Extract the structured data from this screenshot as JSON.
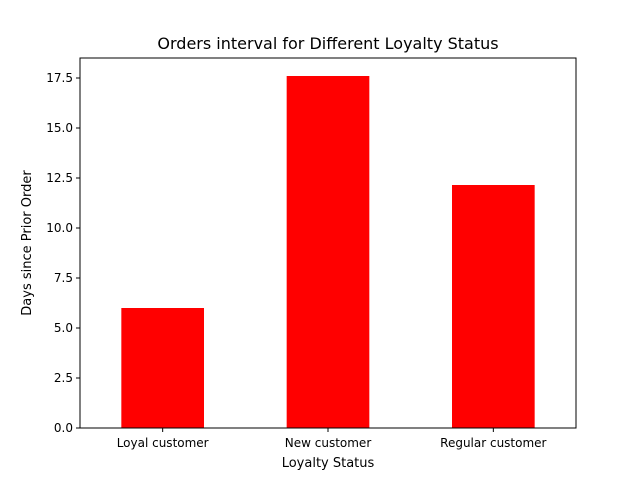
{
  "chart_data": {
    "type": "bar",
    "title": "Orders interval for Different Loyalty Status",
    "xlabel": "Loyalty Status",
    "ylabel": "Days since Prior Order",
    "categories": [
      "Loyal customer",
      "New customer",
      "Regular customer"
    ],
    "values": [
      6.0,
      17.6,
      12.15
    ],
    "ylim": [
      0,
      18.5
    ],
    "yticks": [
      0.0,
      2.5,
      5.0,
      7.5,
      10.0,
      12.5,
      15.0,
      17.5
    ],
    "ytick_labels": [
      "0.0",
      "2.5",
      "5.0",
      "7.5",
      "10.0",
      "12.5",
      "15.0",
      "17.5"
    ],
    "bar_color": "#ff0000",
    "grid": false,
    "legend": "none"
  }
}
